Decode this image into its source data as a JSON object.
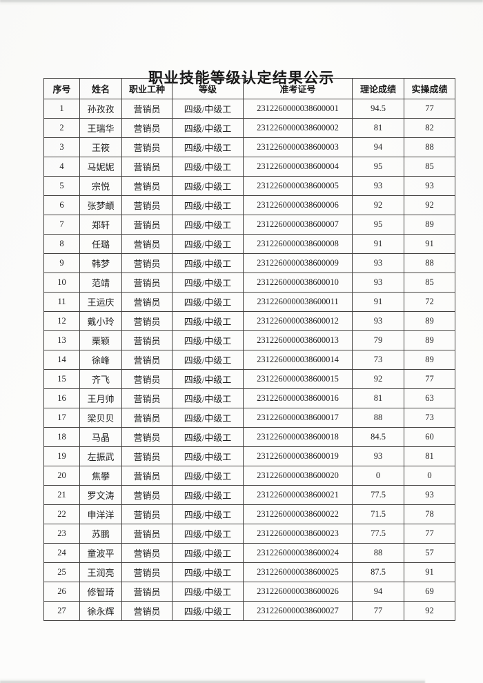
{
  "page": {
    "title": "职业技能等级认定结果公示"
  },
  "table": {
    "headers": [
      "序号",
      "姓名",
      "职业工种",
      "等级",
      "准考证号",
      "理论成绩",
      "实操成绩"
    ],
    "rows": [
      [
        "1",
        "孙孜孜",
        "营销员",
        "四级/中级工",
        "2312260000038600001",
        "94.5",
        "77"
      ],
      [
        "2",
        "王瑞华",
        "营销员",
        "四级/中级工",
        "2312260000038600002",
        "81",
        "82"
      ],
      [
        "3",
        "王筱",
        "营销员",
        "四级/中级工",
        "2312260000038600003",
        "94",
        "88"
      ],
      [
        "4",
        "马妮妮",
        "营销员",
        "四级/中级工",
        "2312260000038600004",
        "95",
        "85"
      ],
      [
        "5",
        "宗悦",
        "营销员",
        "四级/中级工",
        "2312260000038600005",
        "93",
        "93"
      ],
      [
        "6",
        "张梦頔",
        "营销员",
        "四级/中级工",
        "2312260000038600006",
        "92",
        "92"
      ],
      [
        "7",
        "郑轩",
        "营销员",
        "四级/中级工",
        "2312260000038600007",
        "95",
        "89"
      ],
      [
        "8",
        "任璐",
        "营销员",
        "四级/中级工",
        "2312260000038600008",
        "91",
        "91"
      ],
      [
        "9",
        "韩梦",
        "营销员",
        "四级/中级工",
        "2312260000038600009",
        "93",
        "88"
      ],
      [
        "10",
        "范靖",
        "营销员",
        "四级/中级工",
        "2312260000038600010",
        "93",
        "85"
      ],
      [
        "11",
        "王运庆",
        "营销员",
        "四级/中级工",
        "2312260000038600011",
        "91",
        "72"
      ],
      [
        "12",
        "戴小玲",
        "营销员",
        "四级/中级工",
        "2312260000038600012",
        "93",
        "89"
      ],
      [
        "13",
        "栗颖",
        "营销员",
        "四级/中级工",
        "2312260000038600013",
        "79",
        "89"
      ],
      [
        "14",
        "徐峰",
        "营销员",
        "四级/中级工",
        "2312260000038600014",
        "73",
        "89"
      ],
      [
        "15",
        "齐飞",
        "营销员",
        "四级/中级工",
        "2312260000038600015",
        "92",
        "77"
      ],
      [
        "16",
        "王月帅",
        "营销员",
        "四级/中级工",
        "2312260000038600016",
        "81",
        "63"
      ],
      [
        "17",
        "梁贝贝",
        "营销员",
        "四级/中级工",
        "2312260000038600017",
        "88",
        "73"
      ],
      [
        "18",
        "马晶",
        "营销员",
        "四级/中级工",
        "2312260000038600018",
        "84.5",
        "60"
      ],
      [
        "19",
        "左振武",
        "营销员",
        "四级/中级工",
        "2312260000038600019",
        "93",
        "81"
      ],
      [
        "20",
        "焦攀",
        "营销员",
        "四级/中级工",
        "2312260000038600020",
        "0",
        "0"
      ],
      [
        "21",
        "罗文涛",
        "营销员",
        "四级/中级工",
        "2312260000038600021",
        "77.5",
        "93"
      ],
      [
        "22",
        "申洋洋",
        "营销员",
        "四级/中级工",
        "2312260000038600022",
        "71.5",
        "78"
      ],
      [
        "23",
        "苏鹏",
        "营销员",
        "四级/中级工",
        "2312260000038600023",
        "77.5",
        "77"
      ],
      [
        "24",
        "童波平",
        "营销员",
        "四级/中级工",
        "2312260000038600024",
        "88",
        "57"
      ],
      [
        "25",
        "王润亮",
        "营销员",
        "四级/中级工",
        "2312260000038600025",
        "87.5",
        "91"
      ],
      [
        "26",
        "修智琦",
        "营销员",
        "四级/中级工",
        "2312260000038600026",
        "94",
        "69"
      ],
      [
        "27",
        "徐永辉",
        "营销员",
        "四级/中级工",
        "2312260000038600027",
        "77",
        "92"
      ]
    ]
  }
}
